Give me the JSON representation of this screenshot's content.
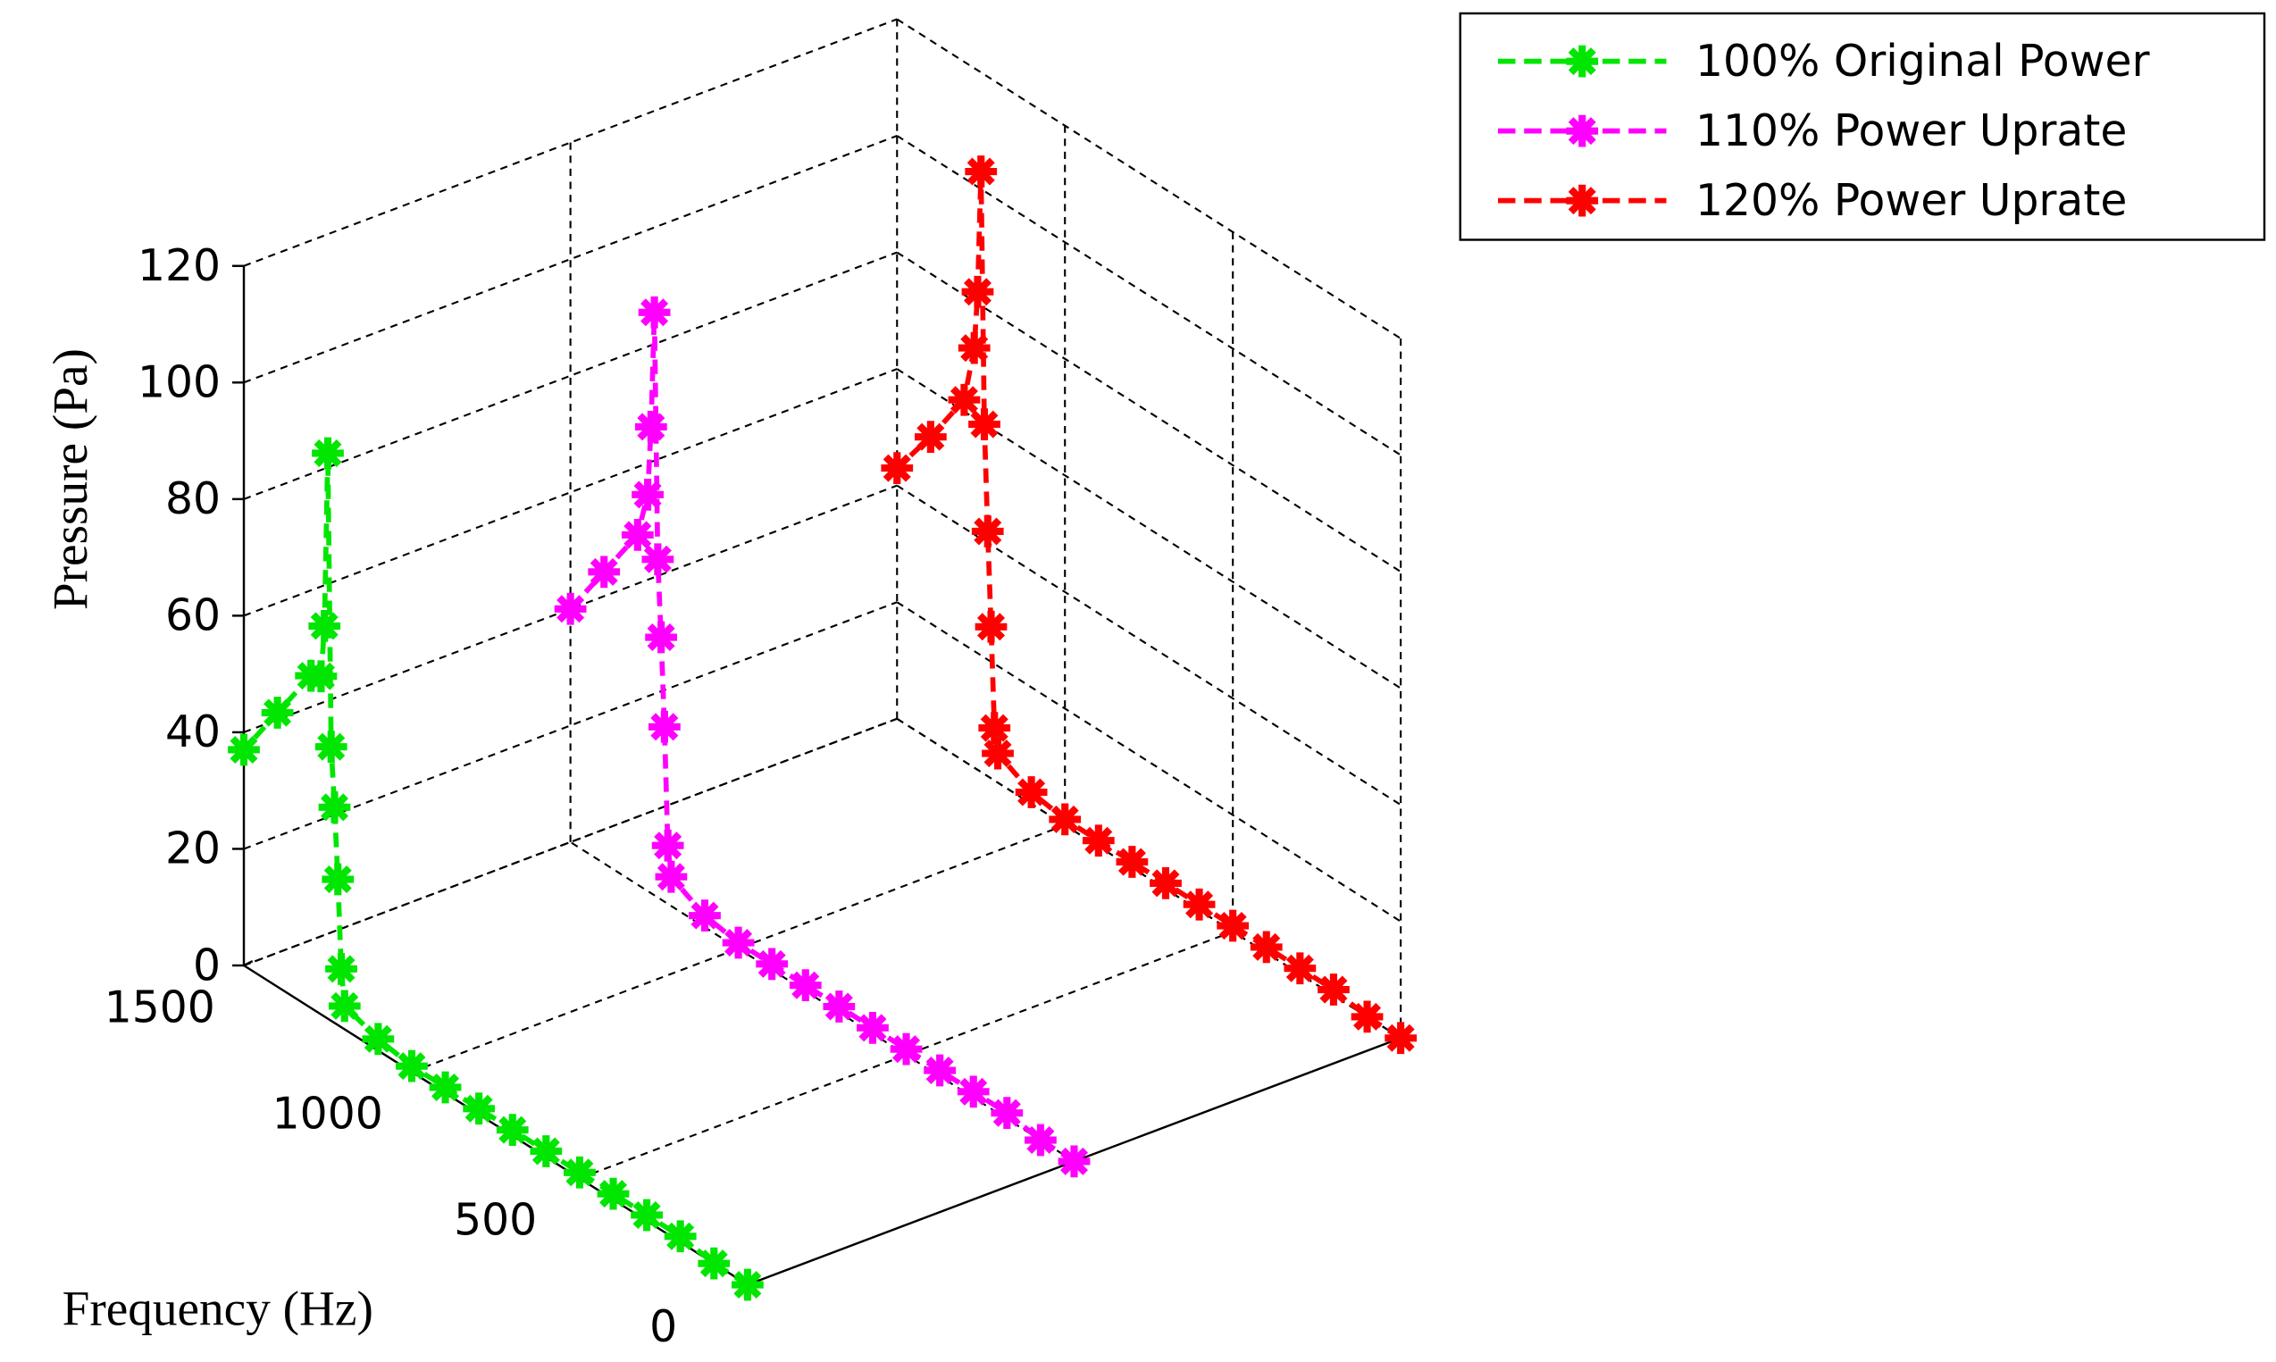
{
  "chart_data": {
    "type": "line3d",
    "x_label": "Frequency (Hz)",
    "y_label": "Pressure (Pa)",
    "x": [
      0,
      100,
      200,
      300,
      400,
      500,
      600,
      700,
      800,
      900,
      1000,
      1100,
      1200,
      1210,
      1220,
      1230,
      1240,
      1250,
      1260,
      1270,
      1300,
      1400,
      1500
    ],
    "xlim": [
      0,
      1500
    ],
    "xticks": [
      0,
      500,
      1000,
      1500
    ],
    "ylim": [
      0,
      120
    ],
    "yticks": [
      0,
      20,
      40,
      60,
      80,
      100,
      120
    ],
    "grid": true,
    "series": [
      {
        "name": "100% Original Power",
        "color": "#00e600",
        "values": [
          0,
          0,
          1,
          1,
          1,
          1,
          1,
          1,
          1,
          1,
          1,
          2,
          4,
          10,
          25,
          37,
          47,
          97,
          67,
          58,
          57,
          47,
          37
        ]
      },
      {
        "name": "110% Power Uprate",
        "color": "#ff00ff",
        "values": [
          0,
          0,
          1,
          1,
          1,
          1,
          1,
          1,
          1,
          1,
          1,
          2,
          5,
          10,
          30,
          45,
          58,
          100,
          80,
          68,
          60,
          50,
          40
        ]
      },
      {
        "name": "120% Power Uprate",
        "color": "#ff0000",
        "values": [
          0,
          0,
          1,
          1,
          1,
          1,
          1,
          1,
          1,
          1,
          1,
          2,
          5,
          9,
          26,
          42,
          60,
          103,
          82,
          72,
          62,
          52,
          43
        ]
      }
    ]
  }
}
